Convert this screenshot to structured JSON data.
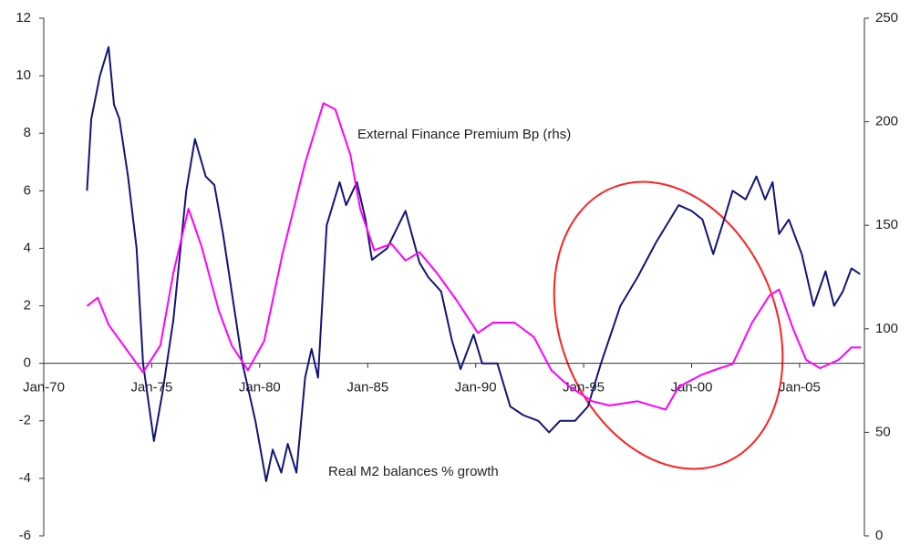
{
  "chart_data": {
    "type": "line",
    "xlim": [
      1970,
      2008
    ],
    "xticks": [
      {
        "value": 1970,
        "label": "Jan-70"
      },
      {
        "value": 1975,
        "label": "Jan-75"
      },
      {
        "value": 1980,
        "label": "Jan-80"
      },
      {
        "value": 1985,
        "label": "Jan-85"
      },
      {
        "value": 1990,
        "label": "Jan-90"
      },
      {
        "value": 1995,
        "label": "Jan-95"
      },
      {
        "value": 2000,
        "label": "Jan-00"
      },
      {
        "value": 2005,
        "label": "Jan-05"
      }
    ],
    "ylim": [
      -6,
      12
    ],
    "yticks": [
      -6,
      -4,
      -2,
      0,
      2,
      4,
      6,
      8,
      10,
      12
    ],
    "y2lim": [
      0,
      250
    ],
    "y2ticks": [
      0,
      50,
      100,
      150,
      200,
      250
    ],
    "series": [
      {
        "name": "Real  M2 balances % growth",
        "color": "#141478",
        "x": [
          1972.0,
          1972.2,
          1972.6,
          1973.0,
          1973.25,
          1973.5,
          1973.9,
          1974.3,
          1974.6,
          1975.1,
          1975.5,
          1976.0,
          1976.6,
          1977.0,
          1977.5,
          1977.9,
          1978.3,
          1978.7,
          1979.2,
          1979.8,
          1980.3,
          1980.6,
          1981.0,
          1981.3,
          1981.7,
          1982.1,
          1982.4,
          1982.7,
          1983.1,
          1983.7,
          1984.0,
          1984.5,
          1984.9,
          1985.2,
          1985.9,
          1986.75,
          1987.4,
          1987.8,
          1988.4,
          1988.9,
          1989.3,
          1989.9,
          1990.3,
          1991.0,
          1991.6,
          1992.2,
          1992.9,
          1993.4,
          1993.9,
          1994.6,
          1995.2,
          1995.8,
          1996.7,
          1997.5,
          1998.35,
          1999.4,
          2000.0,
          2000.5,
          2001.0,
          2001.5,
          2001.9,
          2002.5,
          2003.0,
          2003.4,
          2003.75,
          2004.05,
          2004.5,
          2005.1,
          2005.65,
          2006.2,
          2006.6,
          2007.0,
          2007.4,
          2007.8
        ],
        "values": [
          6,
          8.5,
          10,
          11,
          9,
          8.5,
          6.5,
          4,
          0,
          -2.7,
          -1,
          1.5,
          6,
          7.8,
          6.5,
          6.2,
          4.5,
          2.5,
          0,
          -2,
          -4.1,
          -3,
          -3.8,
          -2.8,
          -3.8,
          -0.5,
          0.5,
          -0.5,
          4.8,
          6.3,
          5.5,
          6.3,
          5,
          3.6,
          4,
          5.3,
          3.5,
          3,
          2.5,
          0.8,
          -0.2,
          1,
          0,
          0,
          -1.5,
          -1.8,
          -2,
          -2.4,
          -2,
          -2,
          -1.5,
          0,
          2,
          3,
          4.2,
          5.5,
          5.3,
          5,
          3.8,
          5,
          6,
          5.7,
          6.5,
          5.7,
          6.3,
          4.5,
          5,
          3.8,
          2,
          3.2,
          2,
          2.5,
          3.3,
          3.1
        ]
      },
      {
        "name": "External  Finance Premium Bp (rhs)",
        "color": "#ff00ff",
        "axis": "y2",
        "x": [
          1972.0,
          1972.5,
          1973.0,
          1973.9,
          1974.6,
          1975.4,
          1976.0,
          1976.7,
          1977.3,
          1978.1,
          1978.7,
          1979.45,
          1980.2,
          1981.05,
          1982.1,
          1982.95,
          1983.5,
          1984.2,
          1984.65,
          1985.3,
          1986.1,
          1986.75,
          1987.4,
          1988.2,
          1989.1,
          1990.1,
          1990.8,
          1991.8,
          1992.7,
          1993.5,
          1994.35,
          1995.4,
          1996.2,
          1997.5,
          1998.8,
          1999.4,
          2000.5,
          2001.3,
          2001.9,
          2002.8,
          2003.6,
          2004.05,
          2004.7,
          2005.3,
          2005.95,
          2006.8,
          2007.4,
          2007.85
        ],
        "values": [
          111,
          115,
          102,
          89,
          79,
          92,
          127,
          158,
          140,
          109,
          92,
          80,
          94,
          136,
          180,
          209,
          206,
          184,
          158,
          138,
          141,
          133,
          137,
          127,
          114,
          98,
          103,
          103,
          96,
          80,
          72,
          65,
          63,
          65,
          61,
          72,
          78,
          81,
          83,
          103,
          116,
          119,
          100,
          85,
          81,
          85,
          91,
          91
        ]
      }
    ]
  }
}
